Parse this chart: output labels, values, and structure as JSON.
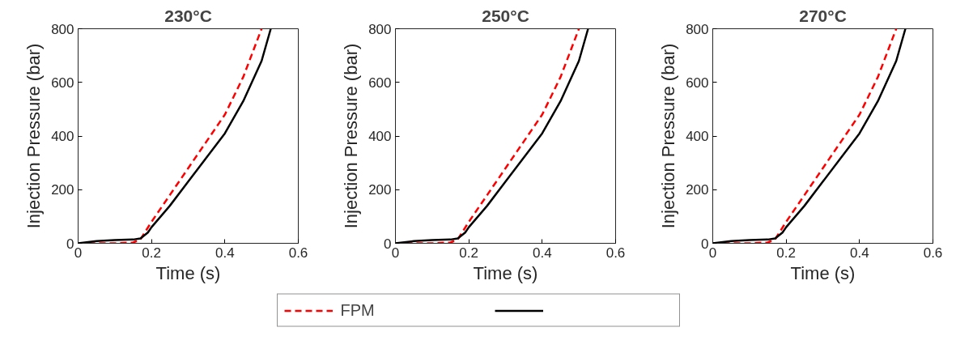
{
  "chart_data": [
    {
      "type": "line",
      "title": "230°C",
      "xlabel": "Time (s)",
      "ylabel": "Injection Pressure (bar)",
      "xlim": [
        0,
        0.6
      ],
      "ylim": [
        0,
        800
      ],
      "xticks": [
        0,
        0.2,
        0.4,
        0.6
      ],
      "yticks": [
        0,
        200,
        400,
        600,
        800
      ],
      "grid": false,
      "series": [
        {
          "color": "#ff0000",
          "line_style": "dashed",
          "x": [
            0,
            0.1,
            0.15,
            0.17,
            0.2,
            0.25,
            0.3,
            0.35,
            0.4,
            0.45,
            0.5
          ],
          "values": [
            0,
            0,
            3,
            15,
            80,
            180,
            280,
            380,
            480,
            620,
            800
          ]
        },
        {
          "color": "#000000",
          "line_style": "solid",
          "x": [
            0,
            0.05,
            0.1,
            0.15,
            0.17,
            0.19,
            0.2,
            0.25,
            0.3,
            0.35,
            0.4,
            0.45,
            0.5,
            0.525
          ],
          "values": [
            0,
            8,
            12,
            14,
            18,
            40,
            60,
            140,
            230,
            320,
            410,
            530,
            680,
            800
          ]
        }
      ]
    },
    {
      "type": "line",
      "title": "250°C",
      "xlabel": "Time (s)",
      "ylabel": "Injection Pressure (bar)",
      "xlim": [
        0,
        0.6
      ],
      "ylim": [
        0,
        800
      ],
      "xticks": [
        0,
        0.2,
        0.4,
        0.6
      ],
      "yticks": [
        0,
        200,
        400,
        600,
        800
      ],
      "grid": false,
      "legend": "bottom",
      "series": [
        {
          "name": "FPM",
          "color": "#ff0000",
          "line_style": "dashed",
          "x": [
            0,
            0.1,
            0.15,
            0.17,
            0.2,
            0.25,
            0.3,
            0.35,
            0.4,
            0.45,
            0.5
          ],
          "values": [
            0,
            0,
            3,
            15,
            80,
            180,
            280,
            380,
            480,
            620,
            800
          ]
        },
        {
          "color": "#000000",
          "line_style": "solid",
          "x": [
            0,
            0.05,
            0.1,
            0.15,
            0.17,
            0.19,
            0.2,
            0.25,
            0.3,
            0.35,
            0.4,
            0.45,
            0.5,
            0.525
          ],
          "values": [
            0,
            8,
            12,
            14,
            18,
            40,
            60,
            140,
            230,
            320,
            410,
            530,
            680,
            800
          ]
        }
      ]
    },
    {
      "type": "line",
      "title": "270°C",
      "xlabel": "Time (s)",
      "ylabel": "Injection Pressure (bar)",
      "xlim": [
        0,
        0.6
      ],
      "ylim": [
        0,
        800
      ],
      "xticks": [
        0,
        0.2,
        0.4,
        0.6
      ],
      "yticks": [
        0,
        200,
        400,
        600,
        800
      ],
      "grid": false,
      "series": [
        {
          "color": "#ff0000",
          "line_style": "dashed",
          "x": [
            0,
            0.1,
            0.15,
            0.17,
            0.2,
            0.25,
            0.3,
            0.35,
            0.4,
            0.45,
            0.5
          ],
          "values": [
            0,
            0,
            3,
            15,
            80,
            180,
            280,
            380,
            480,
            620,
            800
          ]
        },
        {
          "color": "#000000",
          "line_style": "solid",
          "x": [
            0,
            0.05,
            0.1,
            0.15,
            0.17,
            0.19,
            0.2,
            0.25,
            0.3,
            0.35,
            0.4,
            0.45,
            0.5,
            0.525
          ],
          "values": [
            0,
            8,
            12,
            14,
            18,
            40,
            60,
            140,
            230,
            320,
            410,
            530,
            680,
            800
          ]
        }
      ]
    }
  ]
}
